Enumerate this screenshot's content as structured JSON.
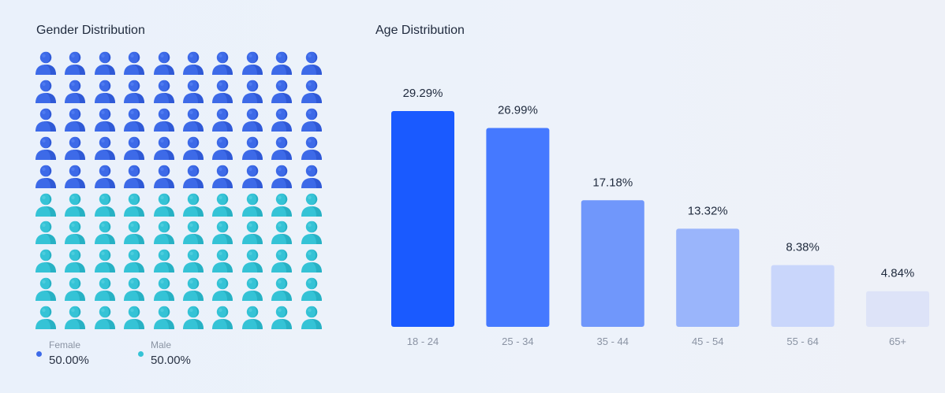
{
  "gender_section": {
    "title": "Gender Distribution",
    "legend": [
      {
        "label": "Female",
        "value": "50.00%",
        "color": "#3d6ae8"
      },
      {
        "label": "Male",
        "value": "50.00%",
        "color": "#35c3d6"
      }
    ]
  },
  "age_section": {
    "title": "Age Distribution"
  },
  "chart_data": [
    {
      "type": "pictogram",
      "title": "Gender Distribution",
      "total_icons": 100,
      "series": [
        {
          "name": "Female",
          "value": 50.0,
          "color": "#3d6ae8"
        },
        {
          "name": "Male",
          "value": 50.0,
          "color": "#35c3d6"
        }
      ]
    },
    {
      "type": "bar",
      "title": "Age Distribution",
      "categories": [
        "18 - 24",
        "25 - 34",
        "35 - 44",
        "45 - 54",
        "55 - 64",
        "65+"
      ],
      "values": [
        29.29,
        26.99,
        17.18,
        13.32,
        8.38,
        4.84
      ],
      "data_labels": [
        "29.29%",
        "26.99%",
        "17.18%",
        "13.32%",
        "8.38%",
        "4.84%"
      ],
      "colors": [
        "#1a5aff",
        "#4579ff",
        "#7097fb",
        "#9ab5fb",
        "#c9d6fb",
        "#dde3f8"
      ],
      "ylim": [
        0,
        30
      ],
      "grid": false
    }
  ]
}
